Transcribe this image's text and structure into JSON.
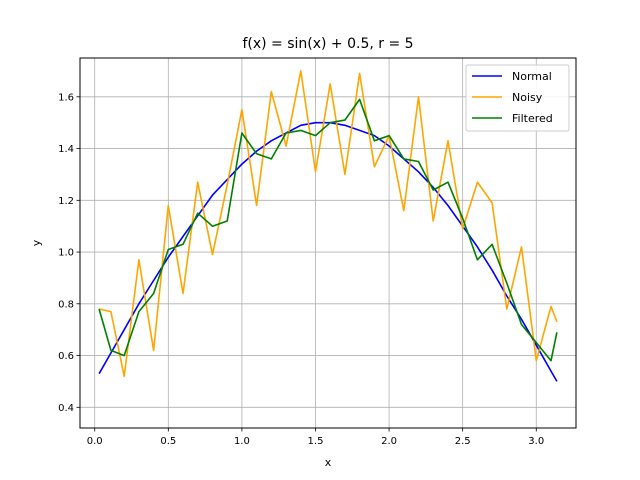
{
  "chart_data": {
    "type": "line",
    "title": "f(x) = sin(x) + 0.5, r = 5",
    "xlabel": "x",
    "ylabel": "y",
    "xlim": [
      -0.1,
      3.27
    ],
    "ylim": [
      0.32,
      1.75
    ],
    "grid": true,
    "legend_position": "top-right",
    "x_ticks": [
      0.0,
      0.5,
      1.0,
      1.5,
      2.0,
      2.5,
      3.0
    ],
    "x_tick_labels": [
      "0.0",
      "0.5",
      "1.0",
      "1.5",
      "2.0",
      "2.5",
      "3.0"
    ],
    "y_ticks": [
      0.4,
      0.6,
      0.8,
      1.0,
      1.2,
      1.4,
      1.6
    ],
    "y_tick_labels": [
      "0.4",
      "0.6",
      "0.8",
      "1.0",
      "1.2",
      "1.4",
      "1.6"
    ],
    "x": [
      0.03,
      0.11,
      0.2,
      0.3,
      0.4,
      0.5,
      0.6,
      0.7,
      0.8,
      0.9,
      1.0,
      1.1,
      1.2,
      1.3,
      1.4,
      1.5,
      1.6,
      1.7,
      1.8,
      1.9,
      2.0,
      2.1,
      2.2,
      2.3,
      2.4,
      2.5,
      2.6,
      2.7,
      2.8,
      2.9,
      3.0,
      3.1,
      3.14
    ],
    "series": [
      {
        "name": "Normal",
        "color": "#0000ff",
        "values": [
          0.53,
          0.61,
          0.7,
          0.8,
          0.89,
          0.98,
          1.06,
          1.14,
          1.22,
          1.28,
          1.34,
          1.39,
          1.43,
          1.46,
          1.49,
          1.5,
          1.5,
          1.49,
          1.47,
          1.45,
          1.41,
          1.36,
          1.31,
          1.25,
          1.18,
          1.1,
          1.02,
          0.93,
          0.83,
          0.74,
          0.64,
          0.54,
          0.5
        ]
      },
      {
        "name": "Noisy",
        "color": "#ffa500",
        "values": [
          0.78,
          0.77,
          0.52,
          0.97,
          0.62,
          1.18,
          0.84,
          1.27,
          0.99,
          1.26,
          1.55,
          1.18,
          1.62,
          1.41,
          1.7,
          1.31,
          1.65,
          1.3,
          1.69,
          1.33,
          1.45,
          1.16,
          1.6,
          1.12,
          1.43,
          1.09,
          1.27,
          1.19,
          0.78,
          1.02,
          0.58,
          0.79,
          0.73
        ]
      },
      {
        "name": "Filtered",
        "color": "#008000",
        "values": [
          0.78,
          0.62,
          0.6,
          0.77,
          0.84,
          1.01,
          1.03,
          1.15,
          1.1,
          1.12,
          1.46,
          1.38,
          1.36,
          1.46,
          1.47,
          1.45,
          1.5,
          1.51,
          1.59,
          1.43,
          1.45,
          1.36,
          1.35,
          1.24,
          1.27,
          1.13,
          0.97,
          1.03,
          0.88,
          0.72,
          0.65,
          0.58,
          0.69
        ]
      }
    ]
  }
}
